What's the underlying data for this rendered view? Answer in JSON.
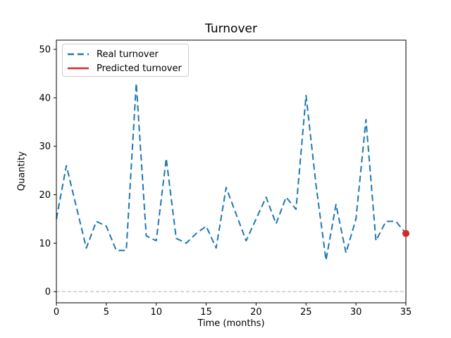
{
  "figure": {
    "title": "Turnover",
    "xlabel": "Time (months)",
    "ylabel": "Quantity"
  },
  "legend": {
    "items": [
      {
        "label": "Real turnover",
        "color": "#1f77b4",
        "style": "dashed"
      },
      {
        "label": "Predicted turnover",
        "color": "#d62728",
        "style": "solid"
      }
    ]
  },
  "colors": {
    "real_line": "#1f77b4",
    "predicted_point": "#d62728",
    "zero_line": "#b0b0b0",
    "axis": "#000000",
    "legend_border": "#cccccc"
  },
  "chart_data": {
    "type": "line",
    "title": "Turnover",
    "xlabel": "Time (months)",
    "ylabel": "Quantity",
    "xlim": [
      0,
      35
    ],
    "ylim": [
      -2.3,
      51.9
    ],
    "x_ticks": [
      0,
      5,
      10,
      15,
      20,
      25,
      30,
      35
    ],
    "y_ticks": [
      0,
      10,
      20,
      30,
      40,
      50
    ],
    "grid": false,
    "zero_line": true,
    "legend_position": "upper left",
    "series": [
      {
        "name": "Real turnover",
        "type": "line",
        "color": "#1f77b4",
        "dashed": true,
        "x": [
          0,
          1,
          2,
          3,
          4,
          5,
          6,
          7,
          8,
          9,
          10,
          11,
          12,
          13,
          14,
          15,
          16,
          17,
          18,
          19,
          20,
          21,
          22,
          23,
          24,
          25,
          26,
          27,
          28,
          29,
          30,
          31,
          32,
          33,
          34,
          35
        ],
        "y": [
          15,
          26,
          17.5,
          9,
          14.5,
          13.5,
          8.5,
          8.5,
          43,
          11.5,
          10.5,
          27.5,
          11,
          10,
          12,
          13.5,
          9,
          21.5,
          16,
          10.5,
          15,
          19.5,
          14,
          19.5,
          17,
          40.5,
          22,
          6.5,
          18,
          8,
          15,
          35.5,
          10.5,
          14.5,
          14.5,
          12
        ]
      },
      {
        "name": "Predicted turnover",
        "type": "scatter",
        "color": "#d62728",
        "x": [
          35
        ],
        "y": [
          12
        ]
      }
    ]
  }
}
